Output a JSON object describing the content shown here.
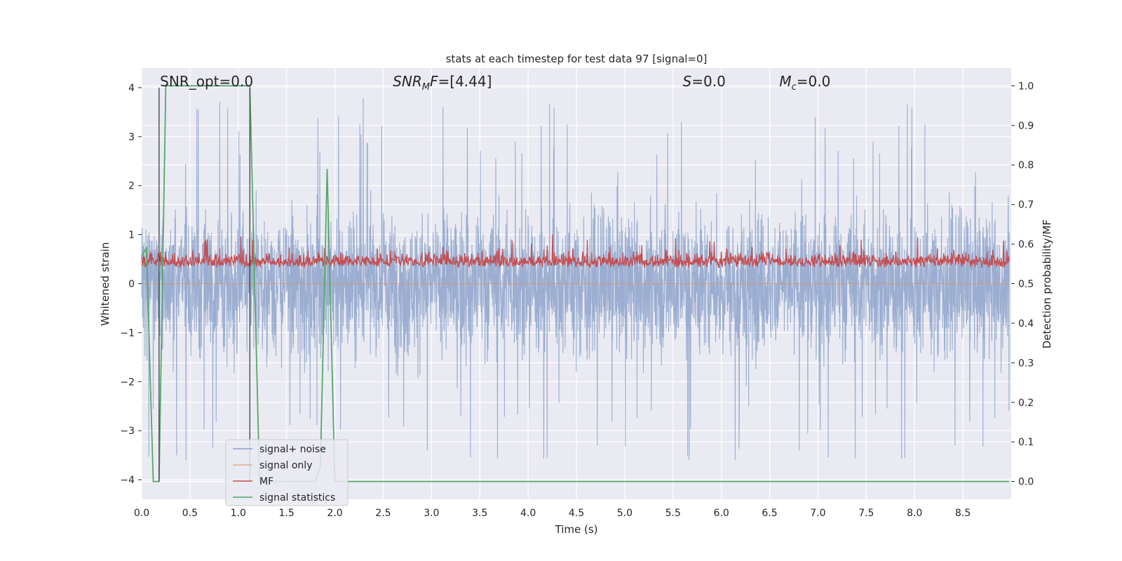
{
  "chart_data": {
    "type": "line",
    "title": "stats at each timestep for test data 97 [signal=0]",
    "xlabel": "Time (s)",
    "ylabel_left": "Whitened strain",
    "ylabel_right": "Detection probability/MF",
    "xlim": [
      0.0,
      9.0
    ],
    "ylim_left": [
      -4.4,
      4.4
    ],
    "ylim_right": [
      -0.045,
      1.045
    ],
    "x_ticks": [
      0.0,
      0.5,
      1.0,
      1.5,
      2.0,
      2.5,
      3.0,
      3.5,
      4.0,
      4.5,
      5.0,
      5.5,
      6.0,
      6.5,
      7.0,
      7.5,
      8.0,
      8.5
    ],
    "x_tick_labels": [
      "0.0",
      "0.5",
      "1.0",
      "1.5",
      "2.0",
      "2.5",
      "3.0",
      "3.5",
      "4.0",
      "4.5",
      "5.0",
      "5.5",
      "6.0",
      "6.5",
      "7.0",
      "7.5",
      "8.0",
      "8.5"
    ],
    "y_ticks_left": [
      -4,
      -3,
      -2,
      -1,
      0,
      1,
      2,
      3,
      4
    ],
    "y_tick_labels_left": [
      "−4",
      "−3",
      "−2",
      "−1",
      "0",
      "1",
      "2",
      "3",
      "4"
    ],
    "y_ticks_right": [
      0.0,
      0.1,
      0.2,
      0.3,
      0.4,
      0.5,
      0.6,
      0.7,
      0.8,
      0.9,
      1.0
    ],
    "y_tick_labels_right": [
      "0.0",
      "0.1",
      "0.2",
      "0.3",
      "0.4",
      "0.5",
      "0.6",
      "0.7",
      "0.8",
      "0.9",
      "1.0"
    ],
    "grid": true,
    "legend_position": "lower-left",
    "annotations": [
      {
        "text": "SNR_opt=0.0",
        "x": 0.19
      },
      {
        "text": "SNR_MF=[4.44]",
        "x": 2.6
      },
      {
        "text": "S=0.0",
        "x": 5.6
      },
      {
        "text": "M_c=0.0",
        "x": 6.6
      }
    ],
    "vertical_lines": [
      0.18,
      1.12
    ],
    "series": [
      {
        "name": "signal+ noise",
        "axis": "left",
        "color": "#4c72b0",
        "kind": "noise",
        "amplitude_std": 0.8,
        "peak_range": [
          -3.6,
          4.0
        ]
      },
      {
        "name": "signal only",
        "axis": "left",
        "color": "#dd8452",
        "kind": "flat",
        "y": 0.0
      },
      {
        "name": "MF",
        "axis": "right",
        "color": "#c44e52",
        "kind": "noise",
        "range": [
          0.5,
          0.62
        ],
        "peak": 0.63
      },
      {
        "name": "signal statistics",
        "axis": "right",
        "color": "#55a868",
        "x": [
          0.0,
          0.05,
          0.12,
          0.18,
          0.25,
          1.1,
          1.12,
          1.22,
          1.8,
          1.85,
          1.92,
          2.0,
          2.05,
          8.98
        ],
        "y": [
          0.57,
          0.59,
          0.0,
          0.0,
          1.0,
          1.0,
          1.0,
          0.0,
          0.0,
          0.04,
          0.79,
          0.0,
          0.0,
          0.0
        ]
      }
    ]
  }
}
